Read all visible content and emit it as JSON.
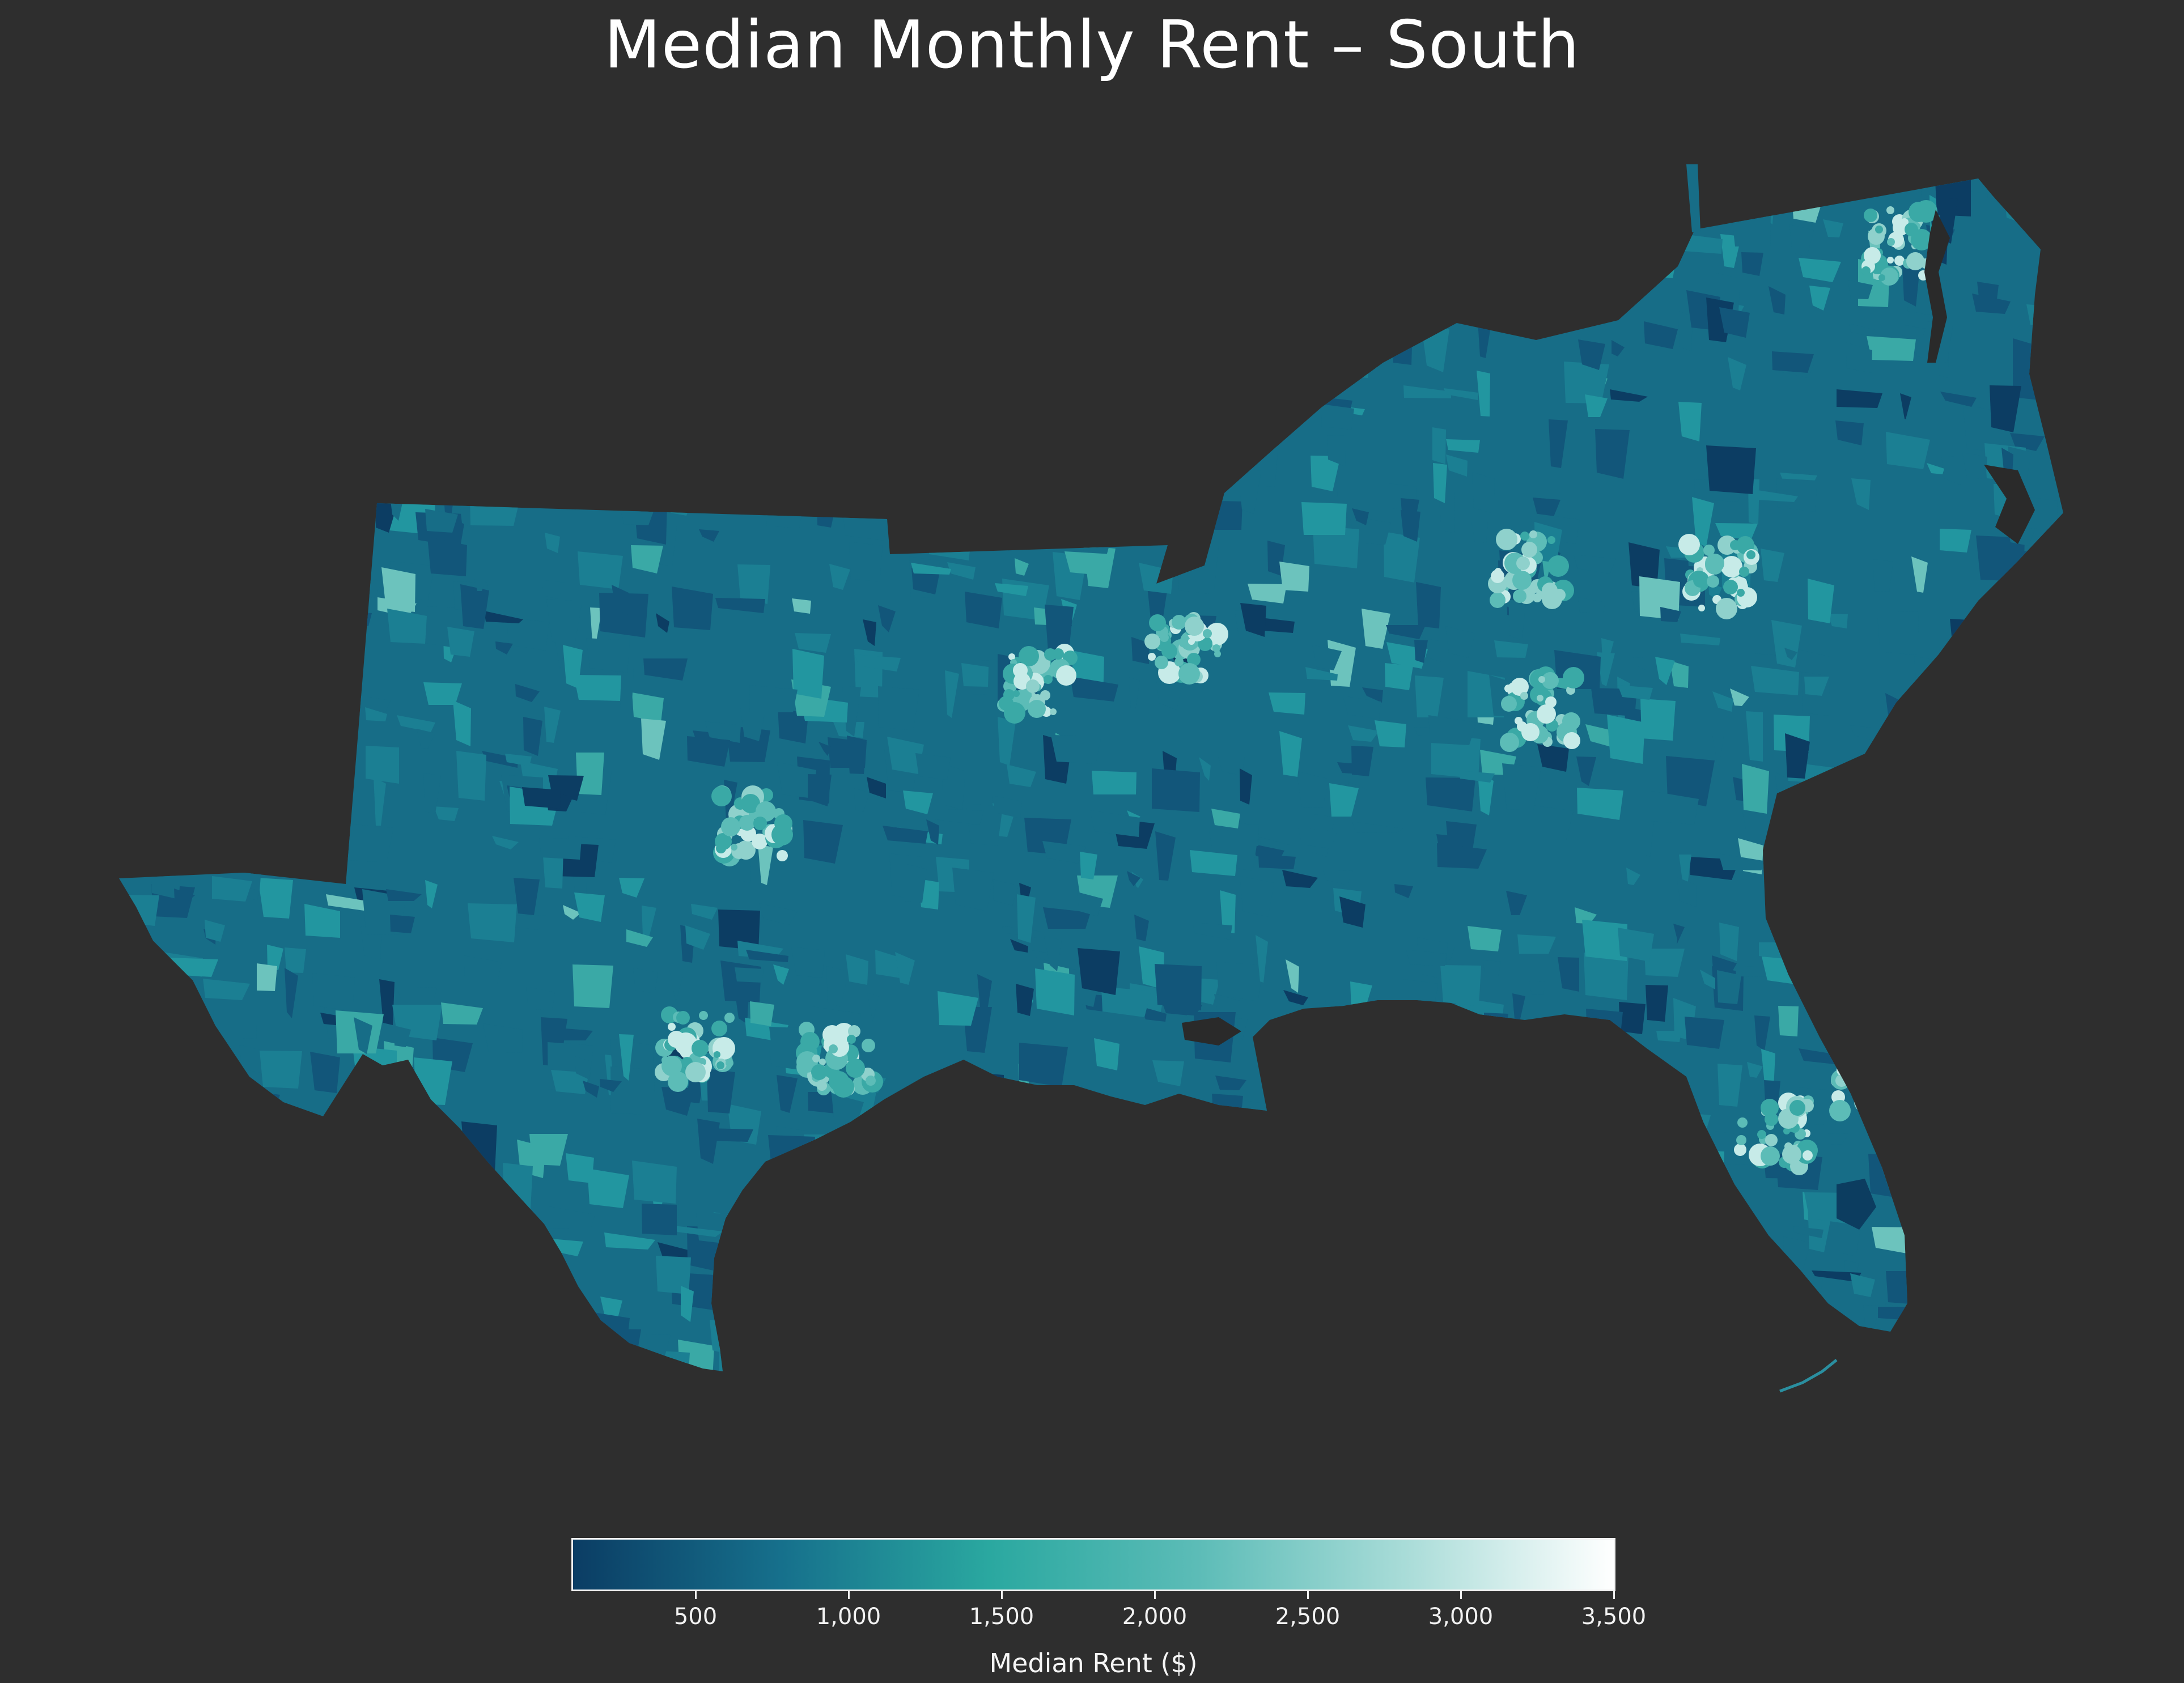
{
  "title": "Median Monthly Rent – South",
  "colorbar": {
    "label": "Median Rent ($)",
    "min": 100,
    "max": 3500,
    "ticks": [
      "500",
      "1,000",
      "1,500",
      "2,000",
      "2,500",
      "3,000",
      "3,500"
    ],
    "colors": [
      "#0b3d64",
      "#16708c",
      "#2aa8a0",
      "#5cbcb7",
      "#a9dcd8",
      "#ffffff"
    ]
  },
  "map": {
    "region": "Southern United States",
    "background_color": "#2e2e2e",
    "land_base_color": "#176d87",
    "water_color": "#2a2a2a"
  }
}
